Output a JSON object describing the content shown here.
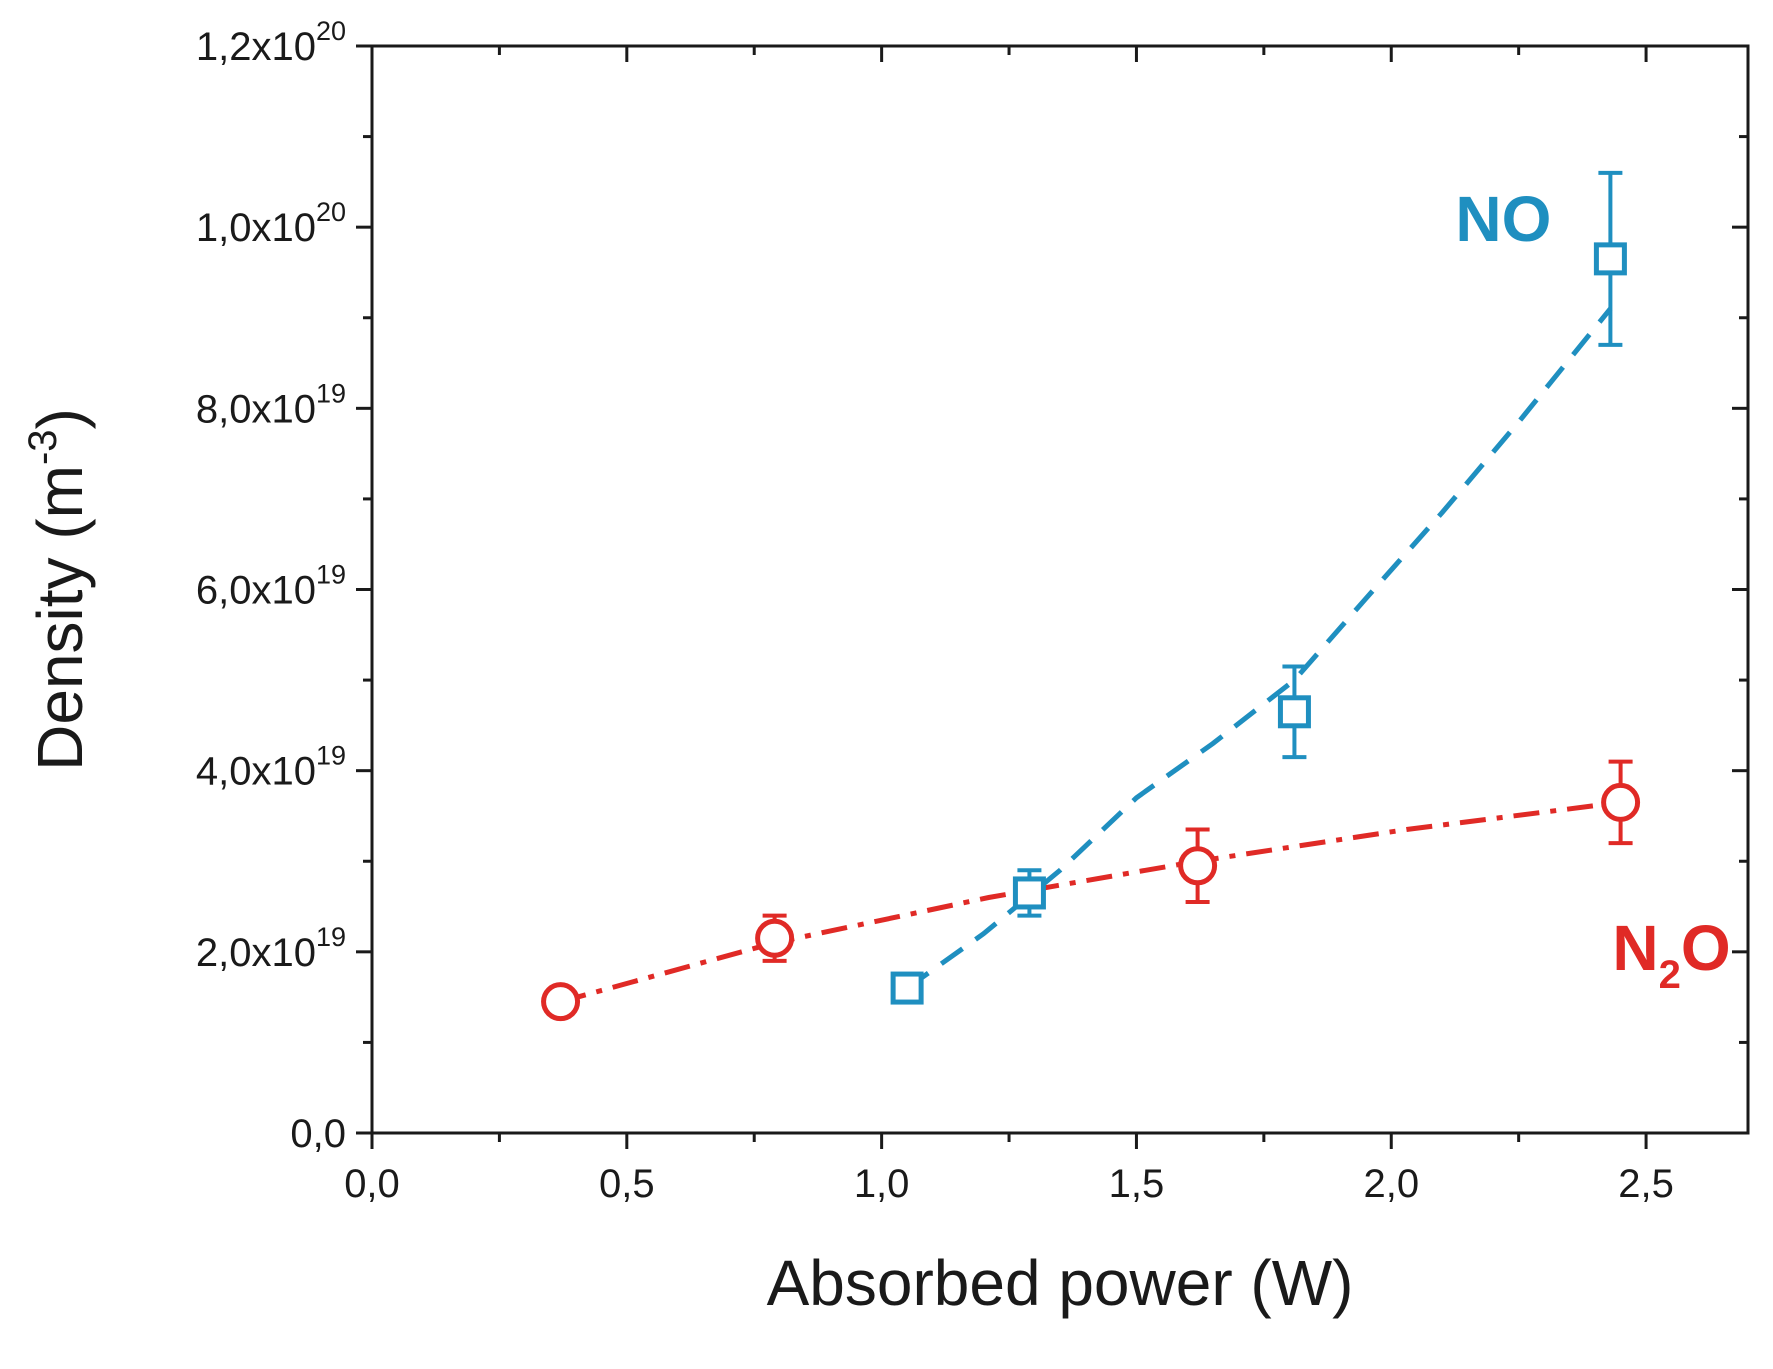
{
  "chart_data": {
    "type": "scatter",
    "title": "",
    "xlabel": "Absorbed power (W)",
    "ylabel": {
      "main": "Density (m",
      "exp": "-3",
      "close": ")"
    },
    "xlim": [
      0,
      2.7
    ],
    "ylim": [
      0,
      1.2e+20
    ],
    "x_ticks": [
      {
        "value": 0.0,
        "label": "0,0"
      },
      {
        "value": 0.5,
        "label": "0,5"
      },
      {
        "value": 1.0,
        "label": "1,0"
      },
      {
        "value": 1.5,
        "label": "1,5"
      },
      {
        "value": 2.0,
        "label": "2,0"
      },
      {
        "value": 2.5,
        "label": "2,5"
      }
    ],
    "y_ticks": [
      {
        "value": 0,
        "mantissa": "0,0",
        "exp": ""
      },
      {
        "value": 2e+19,
        "mantissa": "2,0x10",
        "exp": "19"
      },
      {
        "value": 4e+19,
        "mantissa": "4,0x10",
        "exp": "19"
      },
      {
        "value": 6e+19,
        "mantissa": "6,0x10",
        "exp": "19"
      },
      {
        "value": 8e+19,
        "mantissa": "8,0x10",
        "exp": "19"
      },
      {
        "value": 1e+20,
        "mantissa": "1,0x10",
        "exp": "20"
      },
      {
        "value": 1.2e+20,
        "mantissa": "1,2x10",
        "exp": "20"
      }
    ],
    "series": [
      {
        "name": "NO",
        "label": {
          "main": "NO",
          "sub": ""
        },
        "color": "#1f8fc0",
        "marker": "square",
        "line": "dash",
        "points": [
          {
            "x": 1.05,
            "y": 1.6e+19,
            "err": 0
          },
          {
            "x": 1.29,
            "y": 2.65e+19,
            "err": 2.5e+18
          },
          {
            "x": 1.81,
            "y": 4.65e+19,
            "err": 5e+18
          },
          {
            "x": 2.43,
            "y": 9.65e+19,
            "err": 9.5e+18
          }
        ],
        "fit": [
          {
            "x": 1.05,
            "y": 1.6e+19
          },
          {
            "x": 1.2,
            "y": 2.2e+19
          },
          {
            "x": 1.35,
            "y": 2.9e+19
          },
          {
            "x": 1.5,
            "y": 3.7e+19
          },
          {
            "x": 1.65,
            "y": 4.3e+19
          },
          {
            "x": 1.81,
            "y": 5e+19
          },
          {
            "x": 1.95,
            "y": 5.9e+19
          },
          {
            "x": 2.1,
            "y": 6.85e+19
          },
          {
            "x": 2.25,
            "y": 7.85e+19
          },
          {
            "x": 2.43,
            "y": 9.1e+19
          }
        ]
      },
      {
        "name": "N2O",
        "label": {
          "main": "N",
          "sub": "2",
          "rest": "O"
        },
        "color": "#e02a26",
        "marker": "circle",
        "line": "dashdot",
        "points": [
          {
            "x": 0.37,
            "y": 1.45e+19,
            "err": 0
          },
          {
            "x": 0.79,
            "y": 2.15e+19,
            "err": 2.5e+18
          },
          {
            "x": 1.62,
            "y": 2.95e+19,
            "err": 4e+18
          },
          {
            "x": 2.45,
            "y": 3.65e+19,
            "err": 4.5e+18
          }
        ],
        "fit": [
          {
            "x": 0.37,
            "y": 1.45e+19
          },
          {
            "x": 0.79,
            "y": 2.1e+19
          },
          {
            "x": 1.21,
            "y": 2.6e+19
          },
          {
            "x": 1.62,
            "y": 3e+19
          },
          {
            "x": 2.03,
            "y": 3.35e+19
          },
          {
            "x": 2.45,
            "y": 3.65e+19
          }
        ]
      }
    ]
  }
}
